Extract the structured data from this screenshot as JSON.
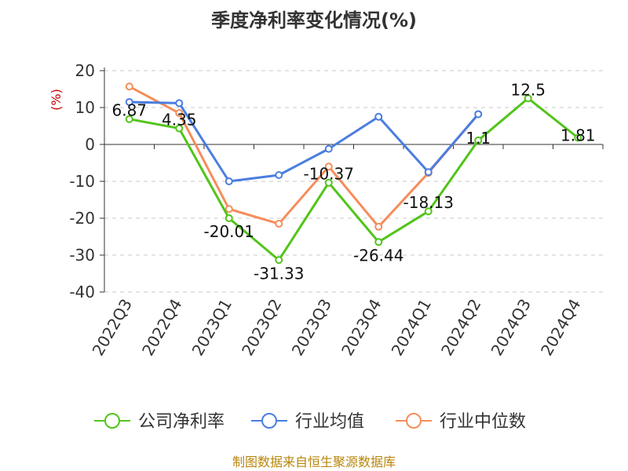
{
  "chart_data": {
    "type": "line",
    "title": "季度净利率变化情况(%)",
    "ylabel": "(%)",
    "categories": [
      "2022Q3",
      "2022Q4",
      "2023Q1",
      "2023Q2",
      "2023Q3",
      "2023Q4",
      "2024Q1",
      "2024Q2",
      "2024Q3",
      "2024Q4"
    ],
    "ylim": [
      -40,
      20
    ],
    "yticks": [
      20,
      10,
      0,
      -10,
      -20,
      -30,
      -40
    ],
    "grid": true,
    "legend_position": "bottom",
    "series": [
      {
        "name": "公司净利率",
        "color": "#52c41a",
        "values": [
          6.87,
          4.35,
          -20.01,
          -31.33,
          -10.37,
          -26.44,
          -18.13,
          1.1,
          12.5,
          1.81
        ],
        "labels": [
          "6.87",
          "4.35",
          "-20.01",
          "-31.33",
          "-10.37",
          "-26.44",
          "-18.13",
          "1.1",
          "12.5",
          "1.81"
        ]
      },
      {
        "name": "行业均值",
        "color": "#4a7ee0",
        "values": [
          11.5,
          11.2,
          -10,
          -8.3,
          -1.2,
          7.5,
          -7.5,
          8.2,
          null,
          null
        ]
      },
      {
        "name": "行业中位数",
        "color": "#f58d5b",
        "values": [
          15.7,
          8.5,
          -17.5,
          -21.5,
          -6,
          -22.3,
          -7.7,
          8.2,
          null,
          null
        ]
      }
    ],
    "source": "制图数据来自恒生聚源数据库"
  }
}
